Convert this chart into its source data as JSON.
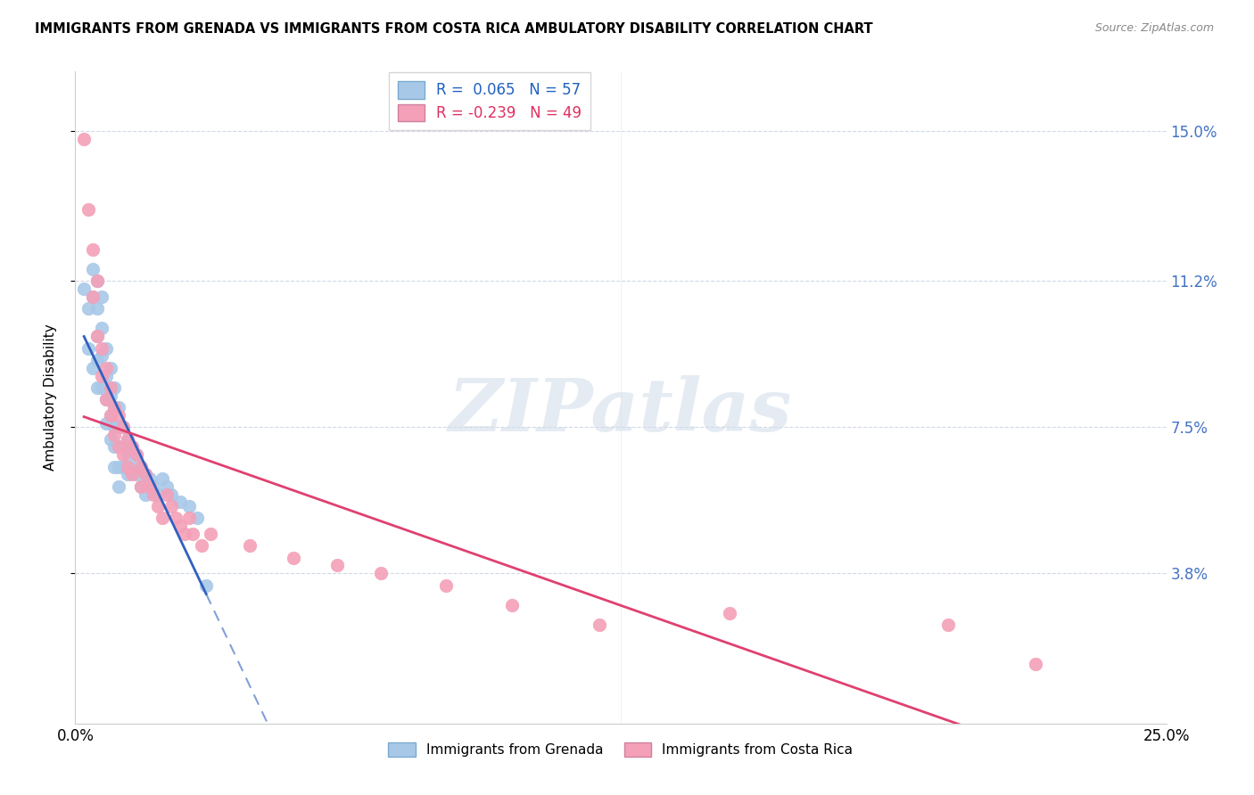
{
  "title": "IMMIGRANTS FROM GRENADA VS IMMIGRANTS FROM COSTA RICA AMBULATORY DISABILITY CORRELATION CHART",
  "source": "Source: ZipAtlas.com",
  "ylabel": "Ambulatory Disability",
  "ytick_labels": [
    "15.0%",
    "11.2%",
    "7.5%",
    "3.8%"
  ],
  "ytick_values": [
    0.15,
    0.112,
    0.075,
    0.038
  ],
  "xlim": [
    0.0,
    0.25
  ],
  "ylim": [
    0.0,
    0.165
  ],
  "series1_label": "Immigrants from Grenada",
  "series2_label": "Immigrants from Costa Rica",
  "series1_color": "#a8c8e8",
  "series2_color": "#f4a0b8",
  "series1_line_color": "#3060c0",
  "series2_line_color": "#e04070",
  "R1": 0.065,
  "N1": 57,
  "R2": -0.239,
  "N2": 49,
  "grenada_x": [
    0.002,
    0.003,
    0.003,
    0.004,
    0.004,
    0.004,
    0.005,
    0.005,
    0.005,
    0.005,
    0.005,
    0.006,
    0.006,
    0.006,
    0.006,
    0.007,
    0.007,
    0.007,
    0.007,
    0.008,
    0.008,
    0.008,
    0.008,
    0.009,
    0.009,
    0.009,
    0.009,
    0.009,
    0.01,
    0.01,
    0.01,
    0.01,
    0.01,
    0.011,
    0.011,
    0.011,
    0.012,
    0.012,
    0.012,
    0.013,
    0.013,
    0.014,
    0.014,
    0.015,
    0.015,
    0.016,
    0.016,
    0.017,
    0.018,
    0.019,
    0.02,
    0.021,
    0.022,
    0.024,
    0.026,
    0.028,
    0.03
  ],
  "grenada_y": [
    0.11,
    0.105,
    0.095,
    0.115,
    0.108,
    0.09,
    0.112,
    0.105,
    0.098,
    0.092,
    0.085,
    0.108,
    0.1,
    0.093,
    0.085,
    0.095,
    0.088,
    0.082,
    0.076,
    0.09,
    0.083,
    0.078,
    0.072,
    0.085,
    0.08,
    0.075,
    0.07,
    0.065,
    0.08,
    0.075,
    0.07,
    0.065,
    0.06,
    0.075,
    0.07,
    0.065,
    0.072,
    0.068,
    0.063,
    0.07,
    0.065,
    0.068,
    0.063,
    0.065,
    0.06,
    0.063,
    0.058,
    0.062,
    0.06,
    0.058,
    0.062,
    0.06,
    0.058,
    0.056,
    0.055,
    0.052,
    0.035
  ],
  "costarica_x": [
    0.002,
    0.003,
    0.004,
    0.004,
    0.005,
    0.005,
    0.006,
    0.006,
    0.007,
    0.007,
    0.008,
    0.008,
    0.009,
    0.009,
    0.01,
    0.01,
    0.011,
    0.011,
    0.012,
    0.012,
    0.013,
    0.013,
    0.014,
    0.015,
    0.015,
    0.016,
    0.017,
    0.018,
    0.019,
    0.02,
    0.021,
    0.022,
    0.023,
    0.024,
    0.025,
    0.026,
    0.027,
    0.029,
    0.031,
    0.04,
    0.05,
    0.06,
    0.07,
    0.085,
    0.1,
    0.12,
    0.15,
    0.2,
    0.22
  ],
  "costarica_y": [
    0.148,
    0.13,
    0.12,
    0.108,
    0.112,
    0.098,
    0.095,
    0.088,
    0.09,
    0.082,
    0.085,
    0.078,
    0.08,
    0.073,
    0.078,
    0.07,
    0.075,
    0.068,
    0.072,
    0.065,
    0.07,
    0.063,
    0.068,
    0.065,
    0.06,
    0.063,
    0.06,
    0.058,
    0.055,
    0.052,
    0.058,
    0.055,
    0.052,
    0.05,
    0.048,
    0.052,
    0.048,
    0.045,
    0.048,
    0.045,
    0.042,
    0.04,
    0.038,
    0.035,
    0.03,
    0.025,
    0.028,
    0.025,
    0.015
  ],
  "watermark_text": "ZIPatlas",
  "background_color": "#ffffff",
  "grid_color": "#d0d8e8"
}
